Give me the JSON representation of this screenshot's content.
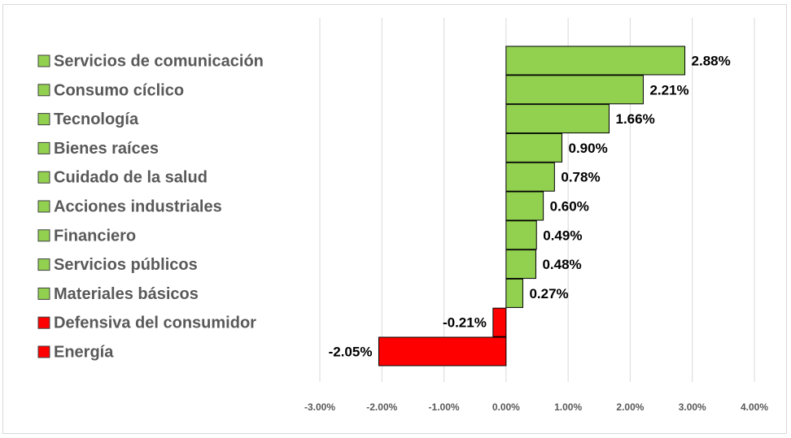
{
  "chart_data": {
    "type": "bar",
    "orientation": "horizontal",
    "categories": [
      "Servicios de comunicación",
      "Consumo cíclico",
      "Tecnología",
      "Bienes raíces",
      "Cuidado de la salud",
      "Acciones industriales",
      "Financiero",
      "Servicios públicos",
      "Materiales básicos",
      "Defensiva del consumidor",
      "Energía"
    ],
    "values": [
      2.88,
      2.21,
      1.66,
      0.9,
      0.78,
      0.6,
      0.49,
      0.48,
      0.27,
      -0.21,
      -2.05
    ],
    "value_labels": [
      "2.88%",
      "2.21%",
      "1.66%",
      "0.90%",
      "0.78%",
      "0.60%",
      "0.49%",
      "0.48%",
      "0.27%",
      "-0.21%",
      "-2.05%"
    ],
    "xlim": [
      -3,
      4
    ],
    "xticks": [
      -3,
      -2,
      -1,
      0,
      1,
      2,
      3,
      4
    ],
    "xtick_labels": [
      "-3.00%",
      "-2.00%",
      "-1.00%",
      "0.00%",
      "1.00%",
      "2.00%",
      "3.00%",
      "4.00%"
    ],
    "grid": true,
    "legend_placement": "left",
    "title": "",
    "xlabel": "",
    "ylabel": "",
    "colors": {
      "positive": "#92d050",
      "negative": "#ff0000",
      "grid": "#d9d9d9",
      "bar_border": "#000000"
    }
  }
}
